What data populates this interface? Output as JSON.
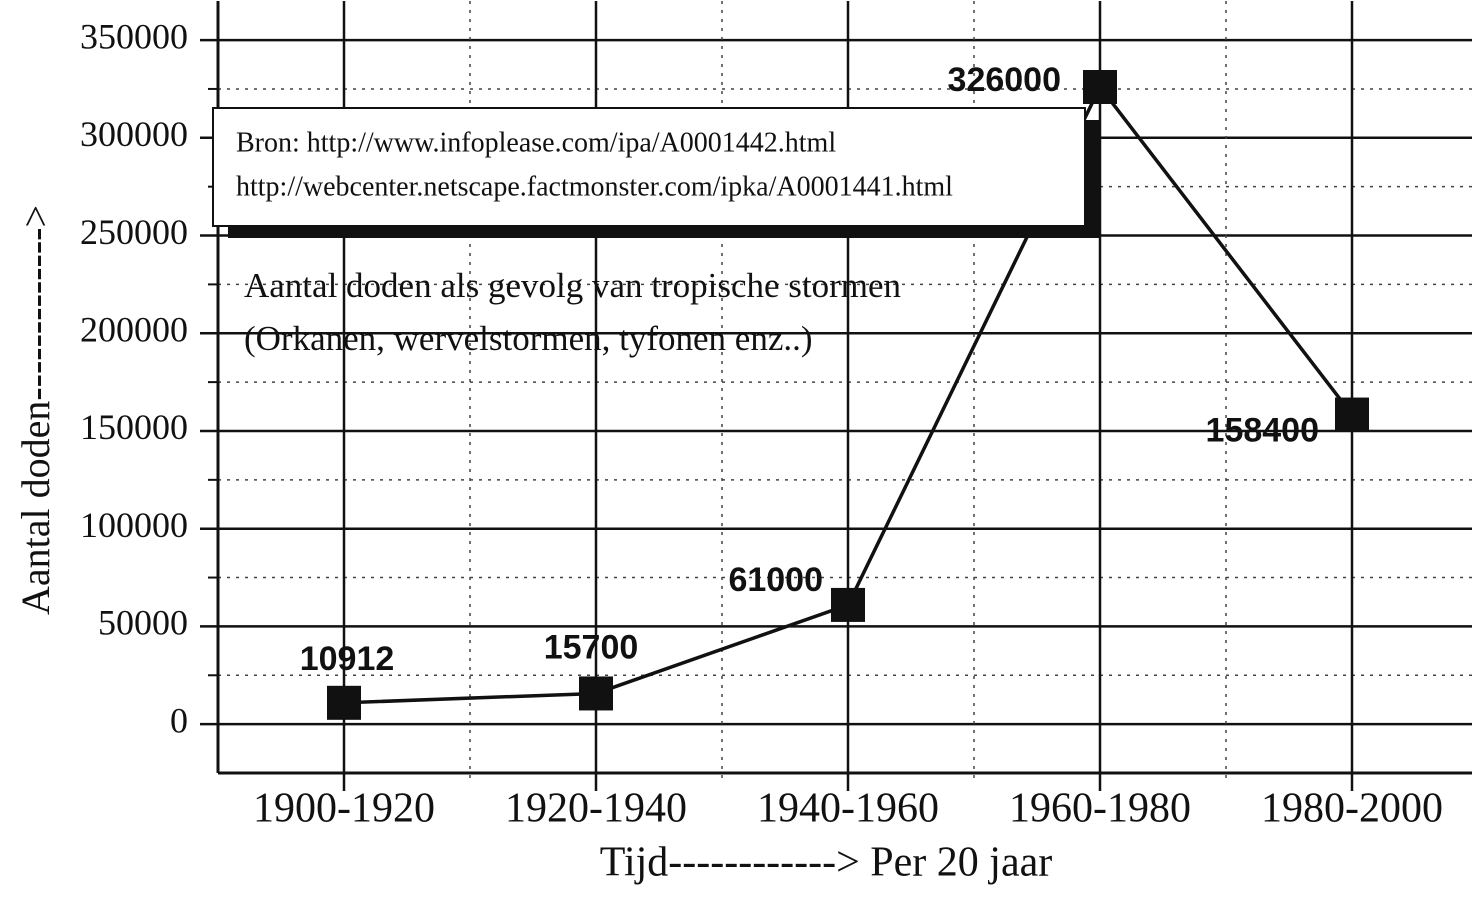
{
  "chart_data": {
    "type": "line",
    "title": "Aantal doden als gevolg van tropische stormen",
    "subtitle": "(Orkanen, wervelstormen, tyfonen enz..)",
    "source": [
      "Bron: http://www.infoplease.com/ipa/A0001442.html",
      "http://webcenter.netscape.factmonster.com/ipka/A0001441.html"
    ],
    "x_label": "Tijd------------> Per 20 jaar",
    "y_label": "Aantal doden------------->",
    "categories": [
      "1900-1920",
      "1920-1940",
      "1940-1960",
      "1960-1980",
      "1980-2000"
    ],
    "values": [
      10912,
      15700,
      61000,
      326000,
      158400
    ],
    "color": "#111111",
    "ylim": [
      -25000,
      370000
    ],
    "yticks": [
      0,
      50000,
      100000,
      150000,
      200000,
      250000,
      300000,
      350000
    ],
    "yticks_minor": [
      25000,
      75000,
      125000,
      175000,
      225000,
      275000,
      325000
    ],
    "grid": true
  }
}
